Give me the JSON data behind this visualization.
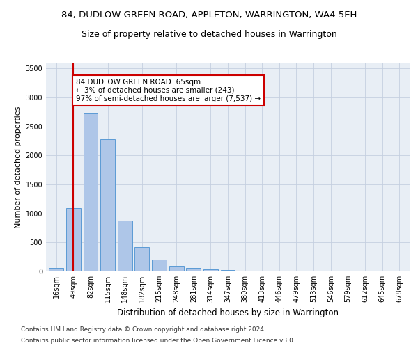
{
  "title": "84, DUDLOW GREEN ROAD, APPLETON, WARRINGTON, WA4 5EH",
  "subtitle": "Size of property relative to detached houses in Warrington",
  "xlabel": "Distribution of detached houses by size in Warrington",
  "ylabel": "Number of detached properties",
  "categories": [
    "16sqm",
    "49sqm",
    "82sqm",
    "115sqm",
    "148sqm",
    "182sqm",
    "215sqm",
    "248sqm",
    "281sqm",
    "314sqm",
    "347sqm",
    "380sqm",
    "413sqm",
    "446sqm",
    "479sqm",
    "513sqm",
    "546sqm",
    "579sqm",
    "612sqm",
    "645sqm",
    "678sqm"
  ],
  "values": [
    55,
    1090,
    2730,
    2280,
    880,
    415,
    200,
    100,
    60,
    40,
    20,
    15,
    10,
    5,
    3,
    2,
    2,
    1,
    1,
    0,
    0
  ],
  "bar_color": "#aec6e8",
  "bar_edgecolor": "#5b9bd5",
  "vline_x": 1.0,
  "vline_color": "#cc0000",
  "annotation_text": "84 DUDLOW GREEN ROAD: 65sqm\n← 3% of detached houses are smaller (243)\n97% of semi-detached houses are larger (7,537) →",
  "annotation_box_color": "#ffffff",
  "annotation_box_edgecolor": "#cc0000",
  "ylim": [
    0,
    3600
  ],
  "yticks": [
    0,
    500,
    1000,
    1500,
    2000,
    2500,
    3000,
    3500
  ],
  "background_color": "#e8eef5",
  "footer_line1": "Contains HM Land Registry data © Crown copyright and database right 2024.",
  "footer_line2": "Contains public sector information licensed under the Open Government Licence v3.0.",
  "title_fontsize": 9.5,
  "subtitle_fontsize": 9,
  "xlabel_fontsize": 8.5,
  "ylabel_fontsize": 8,
  "tick_fontsize": 7,
  "annotation_fontsize": 7.5,
  "footer_fontsize": 6.5
}
